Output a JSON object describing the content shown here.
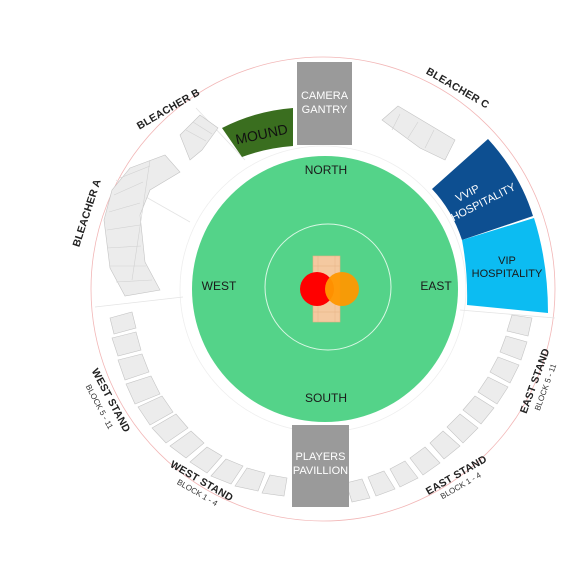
{
  "map": {
    "directions": {
      "north": "NORTH",
      "south": "SOUTH",
      "east": "EAST",
      "west": "WEST"
    },
    "camera_gantry": [
      "CAMERA",
      "GANTRY"
    ],
    "players_pavillion": [
      "PLAYERS",
      "PAVILLION"
    ],
    "mound": "MOUND",
    "vvip": [
      "VVIP",
      "HOSPITALITY"
    ],
    "vip": [
      "VIP",
      "HOSPITALITY"
    ],
    "bleacher_a": "BLEACHER A",
    "bleacher_b": "BLEACHER B",
    "bleacher_c": "BLEACHER C",
    "west_stand_upper": {
      "name": "WEST STAND",
      "block": "BLOCK 5 - 11"
    },
    "west_stand_lower": {
      "name": "WEST STAND",
      "block": "BLOCK 1 - 4"
    },
    "east_stand_upper": {
      "name": "EAST STAND",
      "block": "BLOCK 5 - 11"
    },
    "east_stand_lower": {
      "name": "EAST STAND",
      "block": "BLOCK 1 - 4"
    },
    "colors": {
      "field": "#54d389",
      "pitch": "#f4c9a0",
      "gantry": "#9a9a9a",
      "mound": "#3a6e1f",
      "vvip": "#0d4f91",
      "vip": "#0cbcf2",
      "logo_red": "#ff0000",
      "logo_orange": "#ff9800"
    }
  }
}
